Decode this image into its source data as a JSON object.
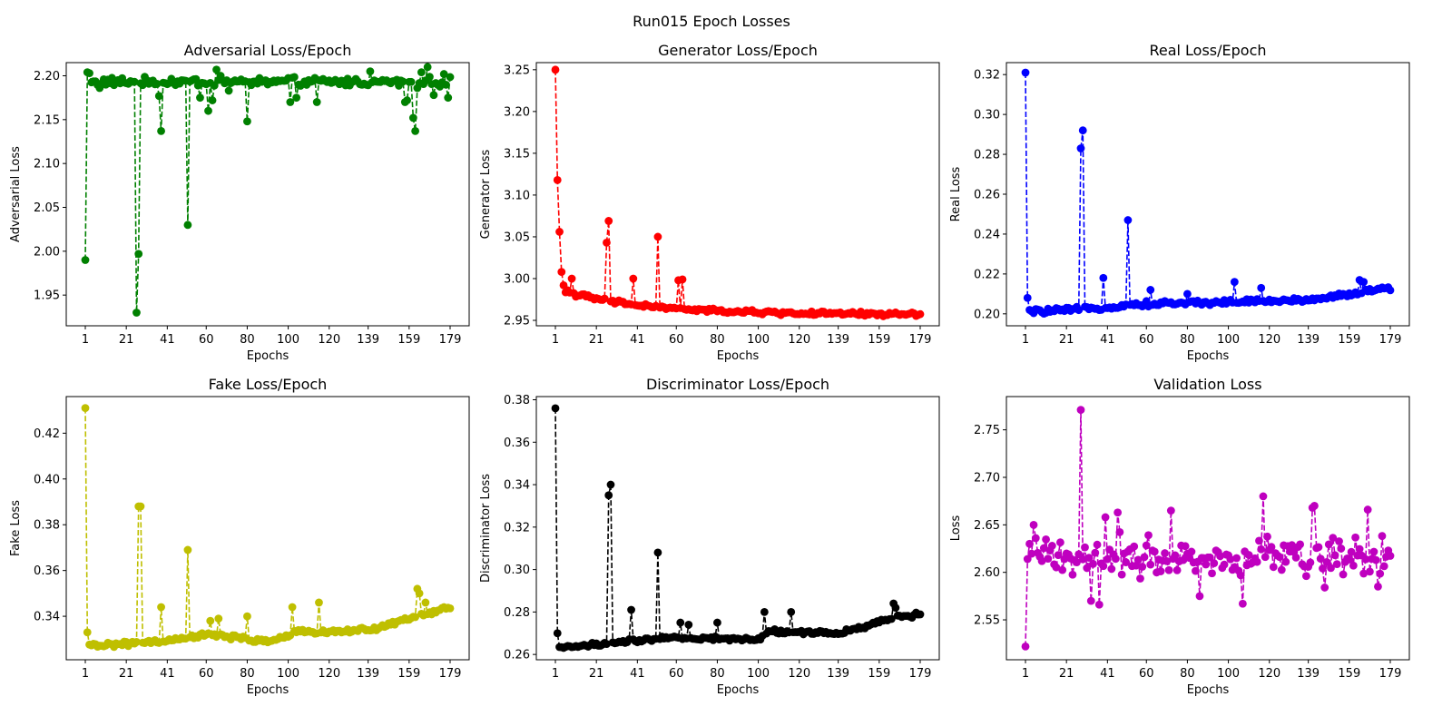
{
  "figure": {
    "suptitle": "Run015 Epoch Losses"
  },
  "chart_data": [
    {
      "type": "line",
      "title": "Adversarial Loss/Epoch",
      "xlabel": "Epochs",
      "ylabel": "Adversarial Loss",
      "color": "#008000",
      "line_style": "dashed",
      "marker": "circle",
      "xlim": [
        1,
        179
      ],
      "x_ticks": [
        1,
        21,
        41,
        60,
        80,
        100,
        120,
        139,
        159,
        179
      ],
      "ylim": [
        1.915,
        2.215
      ],
      "y_ticks": [
        1.95,
        2.0,
        2.05,
        2.1,
        2.15,
        2.2
      ],
      "y_tick_labels": [
        "1.95",
        "2.00",
        "2.05",
        "2.10",
        "2.15",
        "2.20"
      ],
      "baseline": 2.193,
      "noise": 0.006,
      "points": [
        [
          1,
          1.99
        ],
        [
          2,
          2.204
        ],
        [
          3,
          2.203
        ],
        [
          8,
          2.186
        ],
        [
          26,
          1.93
        ],
        [
          27,
          1.997
        ],
        [
          37,
          2.177
        ],
        [
          38,
          2.137
        ],
        [
          51,
          2.03
        ],
        [
          54,
          2.196
        ],
        [
          57,
          2.175
        ],
        [
          61,
          2.16
        ],
        [
          63,
          2.172
        ],
        [
          65,
          2.207
        ],
        [
          67,
          2.2
        ],
        [
          71,
          2.183
        ],
        [
          80,
          2.148
        ],
        [
          101,
          2.17
        ],
        [
          104,
          2.175
        ],
        [
          114,
          2.17
        ],
        [
          140,
          2.205
        ],
        [
          157,
          2.17
        ],
        [
          158,
          2.172
        ],
        [
          161,
          2.152
        ],
        [
          162,
          2.137
        ],
        [
          163,
          2.186
        ],
        [
          165,
          2.204
        ],
        [
          168,
          2.21
        ],
        [
          171,
          2.178
        ],
        [
          176,
          2.202
        ],
        [
          178,
          2.175
        ]
      ]
    },
    {
      "type": "line",
      "title": "Generator Loss/Epoch",
      "xlabel": "Epochs",
      "ylabel": "Generator Loss",
      "color": "#ff0000",
      "line_style": "dashed",
      "marker": "circle",
      "xlim": [
        1,
        179
      ],
      "x_ticks": [
        1,
        21,
        41,
        60,
        80,
        100,
        120,
        139,
        159,
        179
      ],
      "ylim": [
        2.9435,
        3.2585
      ],
      "y_ticks": [
        2.95,
        3.0,
        3.05,
        3.1,
        3.15,
        3.2,
        3.25
      ],
      "y_tick_labels": [
        "2.95",
        "3.00",
        "3.05",
        "3.10",
        "3.15",
        "3.20",
        "3.25"
      ],
      "decay": {
        "from": 2.985,
        "to": 2.957,
        "tau": 40,
        "start": 5
      },
      "noise": 0.003,
      "points": [
        [
          1,
          3.25
        ],
        [
          2,
          3.118
        ],
        [
          3,
          3.056
        ],
        [
          4,
          3.008
        ],
        [
          5,
          2.992
        ],
        [
          7,
          2.986
        ],
        [
          9,
          3.0
        ],
        [
          26,
          3.043
        ],
        [
          27,
          3.069
        ],
        [
          39,
          3.0
        ],
        [
          51,
          3.05
        ],
        [
          61,
          2.998
        ],
        [
          63,
          2.999
        ]
      ]
    },
    {
      "type": "line",
      "title": "Real Loss/Epoch",
      "xlabel": "Epochs",
      "ylabel": "Real Loss",
      "color": "#0000ff",
      "line_style": "dashed",
      "marker": "circle",
      "xlim": [
        1,
        179
      ],
      "x_ticks": [
        1,
        21,
        41,
        60,
        80,
        100,
        120,
        139,
        159,
        179
      ],
      "ylim": [
        0.194,
        0.326
      ],
      "y_ticks": [
        0.2,
        0.22,
        0.24,
        0.26,
        0.28,
        0.3,
        0.32
      ],
      "y_tick_labels": [
        "0.20",
        "0.22",
        "0.24",
        "0.26",
        "0.28",
        "0.30",
        "0.32"
      ],
      "trend": [
        [
          1,
          0.201
        ],
        [
          25,
          0.202
        ],
        [
          60,
          0.205
        ],
        [
          100,
          0.206
        ],
        [
          140,
          0.207
        ],
        [
          179,
          0.213
        ]
      ],
      "noise": 0.0015,
      "points": [
        [
          1,
          0.321
        ],
        [
          2,
          0.208
        ],
        [
          28,
          0.283
        ],
        [
          29,
          0.292
        ],
        [
          39,
          0.218
        ],
        [
          51,
          0.247
        ],
        [
          62,
          0.212
        ],
        [
          80,
          0.21
        ],
        [
          103,
          0.216
        ],
        [
          116,
          0.213
        ],
        [
          164,
          0.217
        ],
        [
          166,
          0.216
        ]
      ]
    },
    {
      "type": "line",
      "title": "Fake Loss/Epoch",
      "xlabel": "Epochs",
      "ylabel": "Fake Loss",
      "color": "#bfbf00",
      "line_style": "dashed",
      "marker": "circle",
      "xlim": [
        1,
        179
      ],
      "x_ticks": [
        1,
        21,
        41,
        60,
        80,
        100,
        120,
        139,
        159,
        179
      ],
      "ylim": [
        0.321,
        0.436
      ],
      "y_ticks": [
        0.34,
        0.36,
        0.38,
        0.4,
        0.42
      ],
      "y_tick_labels": [
        "0.34",
        "0.36",
        "0.38",
        "0.40",
        "0.42"
      ],
      "trend": [
        [
          1,
          0.327
        ],
        [
          40,
          0.329
        ],
        [
          60,
          0.332
        ],
        [
          90,
          0.329
        ],
        [
          105,
          0.333
        ],
        [
          140,
          0.334
        ],
        [
          159,
          0.339
        ],
        [
          179,
          0.344
        ]
      ],
      "noise": 0.0012,
      "points": [
        [
          1,
          0.431
        ],
        [
          2,
          0.333
        ],
        [
          27,
          0.388
        ],
        [
          28,
          0.388
        ],
        [
          38,
          0.344
        ],
        [
          51,
          0.369
        ],
        [
          62,
          0.338
        ],
        [
          66,
          0.339
        ],
        [
          80,
          0.34
        ],
        [
          102,
          0.344
        ],
        [
          115,
          0.346
        ],
        [
          163,
          0.352
        ],
        [
          164,
          0.35
        ],
        [
          167,
          0.346
        ]
      ]
    },
    {
      "type": "line",
      "title": "Discriminator Loss/Epoch",
      "xlabel": "Epochs",
      "ylabel": "Discriminator Loss",
      "color": "#000000",
      "line_style": "dashed",
      "marker": "circle",
      "xlim": [
        1,
        179
      ],
      "x_ticks": [
        1,
        21,
        41,
        60,
        80,
        100,
        120,
        139,
        159,
        179
      ],
      "ylim": [
        0.2575,
        0.3815
      ],
      "y_ticks": [
        0.26,
        0.28,
        0.3,
        0.32,
        0.34,
        0.36,
        0.38
      ],
      "y_tick_labels": [
        "0.26",
        "0.28",
        "0.30",
        "0.32",
        "0.34",
        "0.36",
        "0.38"
      ],
      "trend": [
        [
          1,
          0.263
        ],
        [
          25,
          0.265
        ],
        [
          60,
          0.268
        ],
        [
          100,
          0.267
        ],
        [
          105,
          0.271
        ],
        [
          140,
          0.27
        ],
        [
          165,
          0.277
        ],
        [
          179,
          0.279
        ]
      ],
      "noise": 0.0012,
      "points": [
        [
          1,
          0.376
        ],
        [
          2,
          0.27
        ],
        [
          27,
          0.335
        ],
        [
          28,
          0.34
        ],
        [
          38,
          0.281
        ],
        [
          51,
          0.308
        ],
        [
          62,
          0.275
        ],
        [
          66,
          0.274
        ],
        [
          80,
          0.275
        ],
        [
          103,
          0.28
        ],
        [
          116,
          0.28
        ],
        [
          166,
          0.284
        ],
        [
          167,
          0.282
        ]
      ]
    },
    {
      "type": "line",
      "title": "Validation Loss",
      "xlabel": "Epochs",
      "ylabel": "Loss",
      "color": "#bf00bf",
      "line_style": "dashed",
      "marker": "circle",
      "xlim": [
        1,
        179
      ],
      "x_ticks": [
        1,
        21,
        41,
        60,
        80,
        100,
        120,
        139,
        159,
        179
      ],
      "ylim": [
        2.508,
        2.785
      ],
      "y_ticks": [
        2.55,
        2.6,
        2.65,
        2.7,
        2.75
      ],
      "y_tick_labels": [
        "2.55",
        "2.60",
        "2.65",
        "2.70",
        "2.75"
      ],
      "baseline": 2.617,
      "noise": 0.026,
      "points": [
        [
          1,
          2.522
        ],
        [
          2,
          2.614
        ],
        [
          3,
          2.63
        ],
        [
          5,
          2.65
        ],
        [
          6,
          2.636
        ],
        [
          28,
          2.771
        ],
        [
          33,
          2.57
        ],
        [
          37,
          2.566
        ],
        [
          40,
          2.658
        ],
        [
          46,
          2.663
        ],
        [
          72,
          2.665
        ],
        [
          86,
          2.575
        ],
        [
          107,
          2.567
        ],
        [
          117,
          2.68
        ],
        [
          141,
          2.668
        ],
        [
          142,
          2.67
        ],
        [
          147,
          2.584
        ],
        [
          168,
          2.666
        ],
        [
          173,
          2.585
        ]
      ]
    }
  ]
}
